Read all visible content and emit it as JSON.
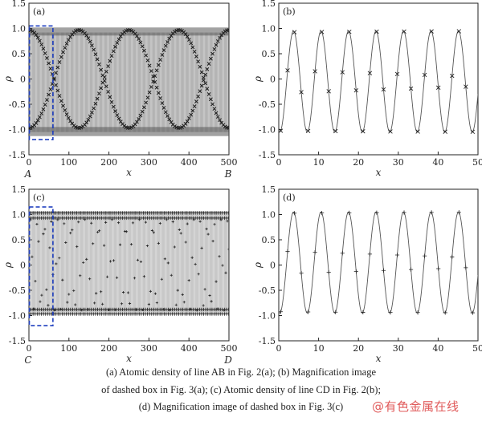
{
  "chart_data": [
    {
      "id": "a",
      "panel_label": "(a)",
      "type": "line",
      "xlabel": "x",
      "ylabel": "ρ",
      "xlim": [
        0,
        500
      ],
      "ylim": [
        -1.5,
        1.5
      ],
      "xticks": [
        0,
        100,
        200,
        300,
        400,
        500
      ],
      "yticks": [
        -1.5,
        -1.0,
        -0.5,
        0,
        0.5,
        1.0,
        1.5
      ],
      "corner_labels": {
        "left": "A",
        "right": "B"
      },
      "marker": "x",
      "curve": "beat",
      "period": 6.9,
      "amp": 1.0,
      "offset": -0.05,
      "dashed_box": {
        "x": [
          1,
          60
        ],
        "y": [
          -1.2,
          1.05
        ]
      }
    },
    {
      "id": "b",
      "panel_label": "(b)",
      "type": "line",
      "xlabel": "x",
      "ylabel": "ρ",
      "xlim": [
        0,
        50
      ],
      "ylim": [
        -1.5,
        1.5
      ],
      "xticks": [
        0,
        10,
        20,
        30,
        40,
        50
      ],
      "yticks": [
        -1.5,
        -1.0,
        -0.5,
        0,
        0.5,
        1.0,
        1.5
      ],
      "marker": "x",
      "curve": "sine",
      "period": 6.9,
      "amp": 1.0,
      "offset": -0.05
    },
    {
      "id": "c",
      "panel_label": "(c)",
      "type": "line",
      "xlabel": "x",
      "ylabel": "ρ",
      "xlim": [
        0,
        500
      ],
      "ylim": [
        -1.5,
        1.5
      ],
      "xticks": [
        0,
        100,
        200,
        300,
        400,
        500
      ],
      "yticks": [
        -1.5,
        -1.0,
        -0.5,
        0,
        0.5,
        1.0,
        1.5
      ],
      "corner_labels": {
        "left": "C",
        "right": "D"
      },
      "marker": "+",
      "curve": "plus_dense",
      "period": 6.9,
      "amp": 1.0,
      "offset": 0.05,
      "dashed_box": {
        "x": [
          1,
          60
        ],
        "y": [
          -1.2,
          1.15
        ]
      }
    },
    {
      "id": "d",
      "panel_label": "(d)",
      "type": "line",
      "xlabel": "x",
      "ylabel": "ρ",
      "xlim": [
        0,
        50
      ],
      "ylim": [
        -1.5,
        1.5
      ],
      "xticks": [
        0,
        10,
        20,
        30,
        40,
        50
      ],
      "yticks": [
        -1.5,
        -1.0,
        -0.5,
        0,
        0.5,
        1.0,
        1.5
      ],
      "marker": "+",
      "curve": "sine",
      "period": 6.9,
      "amp": 1.0,
      "offset": 0.05
    }
  ],
  "caption": {
    "line1": "(a) Atomic density of line AB in Fig. 2(a); (b) Magnification image",
    "line2": "of dashed box in Fig. 3(a); (c) Atomic density of line CD in Fig. 2(b);",
    "line3": "(d) Magnification image of dashed box in Fig. 3(c)"
  },
  "watermark": "@有色金属在线",
  "colors": {
    "axis": "#222222",
    "curve": "#555555",
    "marker": "#222222",
    "box": "#1f3fbf"
  }
}
